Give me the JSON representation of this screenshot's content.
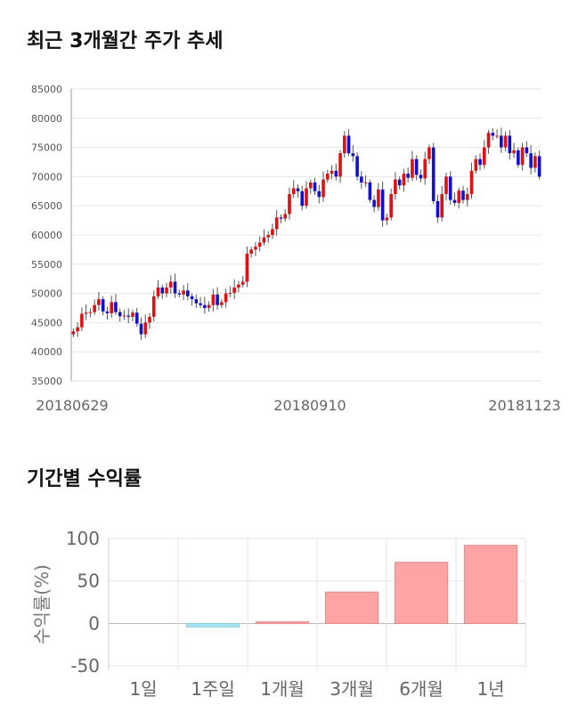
{
  "titles": {
    "price_trend": "최근 3개월간 주가 추세",
    "returns": "기간별 수익률"
  },
  "chart_data": [
    {
      "type": "candlestick",
      "title": "최근 3개월간 주가 추세",
      "ylim": [
        35000,
        85000
      ],
      "yticks": [
        35000,
        40000,
        45000,
        50000,
        55000,
        60000,
        65000,
        70000,
        75000,
        80000,
        85000
      ],
      "xtick_labels": [
        "20180629",
        "20180910",
        "20181123"
      ],
      "grid": true,
      "colors": {
        "up": "#dd1111",
        "down": "#1111cc",
        "wick": "#555555"
      },
      "closes": [
        43500,
        44200,
        46500,
        46700,
        46800,
        48000,
        49000,
        46900,
        46600,
        48500,
        46800,
        46100,
        46200,
        46000,
        46700,
        44800,
        43000,
        45000,
        46000,
        49500,
        51000,
        50000,
        51000,
        52000,
        50000,
        49800,
        50500,
        49500,
        49000,
        48300,
        48000,
        47500,
        48000,
        49800,
        48000,
        48500,
        50000,
        50100,
        51000,
        51500,
        52000,
        56800,
        57500,
        58000,
        58700,
        59600,
        60000,
        61000,
        63000,
        62800,
        63600,
        67000,
        68000,
        67500,
        65000,
        68000,
        69000,
        67500,
        66500,
        69500,
        70500,
        71000,
        70000,
        74000,
        77000,
        74000,
        73500,
        70000,
        69000,
        69000,
        66000,
        64800,
        67800,
        62500,
        63000,
        67000,
        69500,
        68500,
        70500,
        69800,
        73000,
        70300,
        69700,
        73000,
        75000,
        65800,
        63000,
        67000,
        70000,
        66000,
        65500,
        67600,
        66000,
        67000,
        71000,
        73000,
        72000,
        75000,
        77500,
        77000,
        77000,
        75000,
        77000,
        74000,
        74500,
        72000,
        75000,
        74000,
        71500,
        73500,
        70000
      ],
      "opens": [
        43000,
        43500,
        44200,
        46500,
        46700,
        46800,
        48000,
        49000,
        46900,
        46600,
        48500,
        46800,
        46100,
        46200,
        46000,
        46700,
        44800,
        43000,
        45000,
        46000,
        49500,
        51000,
        50000,
        51000,
        52000,
        50000,
        49800,
        50500,
        49500,
        49000,
        48300,
        48000,
        47500,
        48000,
        49800,
        48000,
        48500,
        50000,
        50100,
        51000,
        51500,
        52000,
        56800,
        57500,
        58000,
        58700,
        59600,
        60000,
        61000,
        63000,
        62800,
        63600,
        67000,
        68000,
        67500,
        65000,
        68000,
        69000,
        67500,
        66500,
        69500,
        70500,
        71000,
        70000,
        74000,
        77000,
        74000,
        73500,
        70000,
        69000,
        69000,
        66000,
        64800,
        67800,
        62500,
        63000,
        67000,
        69500,
        68500,
        70500,
        69800,
        73000,
        70300,
        69700,
        73000,
        75000,
        65800,
        63000,
        67000,
        70000,
        66000,
        65500,
        67600,
        66000,
        67000,
        71000,
        73000,
        72000,
        75000,
        77500,
        77000,
        77000,
        75000,
        77000,
        74000,
        74500,
        72000,
        75000,
        74000,
        71500,
        73500
      ]
    },
    {
      "type": "bar",
      "title": "기간별 수익률",
      "ylabel": "수익률(%)",
      "ylim": [
        -55,
        100
      ],
      "yticks": [
        100,
        50,
        0,
        -50
      ],
      "categories": [
        "1일",
        "1주일",
        "1개월",
        "3개월",
        "6개월",
        "1년"
      ],
      "values": [
        0,
        -4,
        2,
        37,
        72,
        92
      ],
      "colors": {
        "positive": "#ffa4a4",
        "negative": "#a8e4f0"
      },
      "grid": true
    }
  ]
}
